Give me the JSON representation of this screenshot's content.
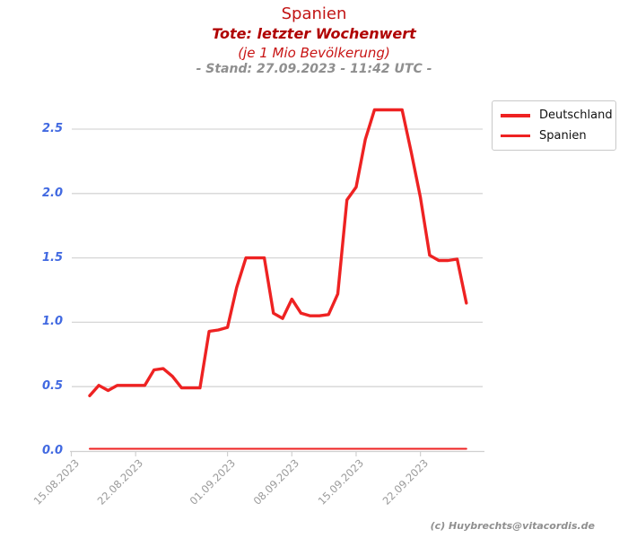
{
  "header": {
    "title": "Spanien",
    "subtitle1": "Tote: letzter Wochenwert",
    "subtitle2": "(je 1 Mio Bevölkerung)",
    "stand": "- Stand: 27.09.2023 - 11:42 UTC -"
  },
  "footer": {
    "credit": "(c) Huybrechts@vitacordis.de"
  },
  "colors": {
    "line_red": "#ee2222",
    "title_red": "#c21414",
    "subtitle_dark_red": "#b00000",
    "stand_gray": "#8f8f8f",
    "ytick_blue": "#4169e1",
    "xtick_gray": "#9a9a9a",
    "grid_gray": "#d6d6d6",
    "axis_gray": "#d0d0d0"
  },
  "chart_data": {
    "type": "line",
    "title": "Spanien",
    "subtitle": "Tote: letzter Wochenwert (je 1 Mio Bevölkerung)",
    "ylabel": "",
    "xlabel": "",
    "ylim": [
      0,
      2.78
    ],
    "grid": "horizontal",
    "legend_position": "upper right",
    "y_ticks": [
      "0.0",
      "0.5",
      "1.0",
      "1.5",
      "2.0",
      "2.5"
    ],
    "x_ticks": [
      {
        "label": "15.08.2023",
        "day": -2
      },
      {
        "label": "22.08.2023",
        "day": 5
      },
      {
        "label": "01.09.2023",
        "day": 15
      },
      {
        "label": "08.09.2023",
        "day": 22
      },
      {
        "label": "15.09.2023",
        "day": 29
      },
      {
        "label": "22.09.2023",
        "day": 36
      }
    ],
    "x_unit": "daily points from 17.08.2023 to 27.09.2023",
    "series": [
      {
        "name": "Deutschland",
        "values": [
          0.43,
          0.51,
          0.47,
          0.51,
          0.51,
          0.51,
          0.51,
          0.63,
          0.64,
          0.58,
          0.49,
          0.49,
          0.49,
          0.93,
          0.94,
          0.96,
          1.27,
          1.5,
          1.5,
          1.5,
          1.07,
          1.03,
          1.18,
          1.07,
          1.05,
          1.05,
          1.06,
          1.22,
          1.95,
          2.05,
          2.42,
          2.65,
          2.65,
          2.65,
          2.65,
          2.32,
          1.97,
          1.52,
          1.48,
          1.48,
          1.49,
          1.15
        ]
      },
      {
        "name": "Spanien",
        "values": [
          0,
          0,
          0,
          0,
          0,
          0,
          0,
          0,
          0,
          0,
          0,
          0,
          0,
          0,
          0,
          0,
          0,
          0,
          0,
          0,
          0,
          0,
          0,
          0,
          0,
          0,
          0,
          0,
          0,
          0,
          0,
          0,
          0,
          0,
          0,
          0,
          0,
          0,
          0,
          0,
          0,
          0
        ]
      }
    ]
  }
}
